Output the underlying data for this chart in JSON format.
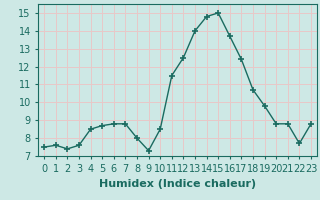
{
  "x": [
    0,
    1,
    2,
    3,
    4,
    5,
    6,
    7,
    8,
    9,
    10,
    11,
    12,
    13,
    14,
    15,
    16,
    17,
    18,
    19,
    20,
    21,
    22,
    23
  ],
  "y": [
    7.5,
    7.6,
    7.4,
    7.6,
    8.5,
    8.7,
    8.8,
    8.8,
    8.0,
    7.3,
    8.5,
    11.5,
    12.5,
    14.0,
    14.8,
    15.0,
    13.7,
    12.4,
    10.7,
    9.8,
    8.8,
    8.8,
    7.7,
    8.8
  ],
  "line_color": "#1a6b60",
  "marker": "+",
  "marker_size": 4,
  "bg_color": "#cde8e5",
  "grid_color": "#e8c8c8",
  "title": "",
  "xlabel": "Humidex (Indice chaleur)",
  "ylabel": "",
  "xlim": [
    -0.5,
    23.5
  ],
  "ylim": [
    7.0,
    15.5
  ],
  "yticks": [
    7,
    8,
    9,
    10,
    11,
    12,
    13,
    14,
    15
  ],
  "xtick_labels": [
    "0",
    "1",
    "2",
    "3",
    "4",
    "5",
    "6",
    "7",
    "8",
    "9",
    "10",
    "11",
    "12",
    "13",
    "14",
    "15",
    "16",
    "17",
    "18",
    "19",
    "20",
    "21",
    "22",
    "23"
  ],
  "xlabel_fontsize": 8,
  "tick_fontsize": 7
}
